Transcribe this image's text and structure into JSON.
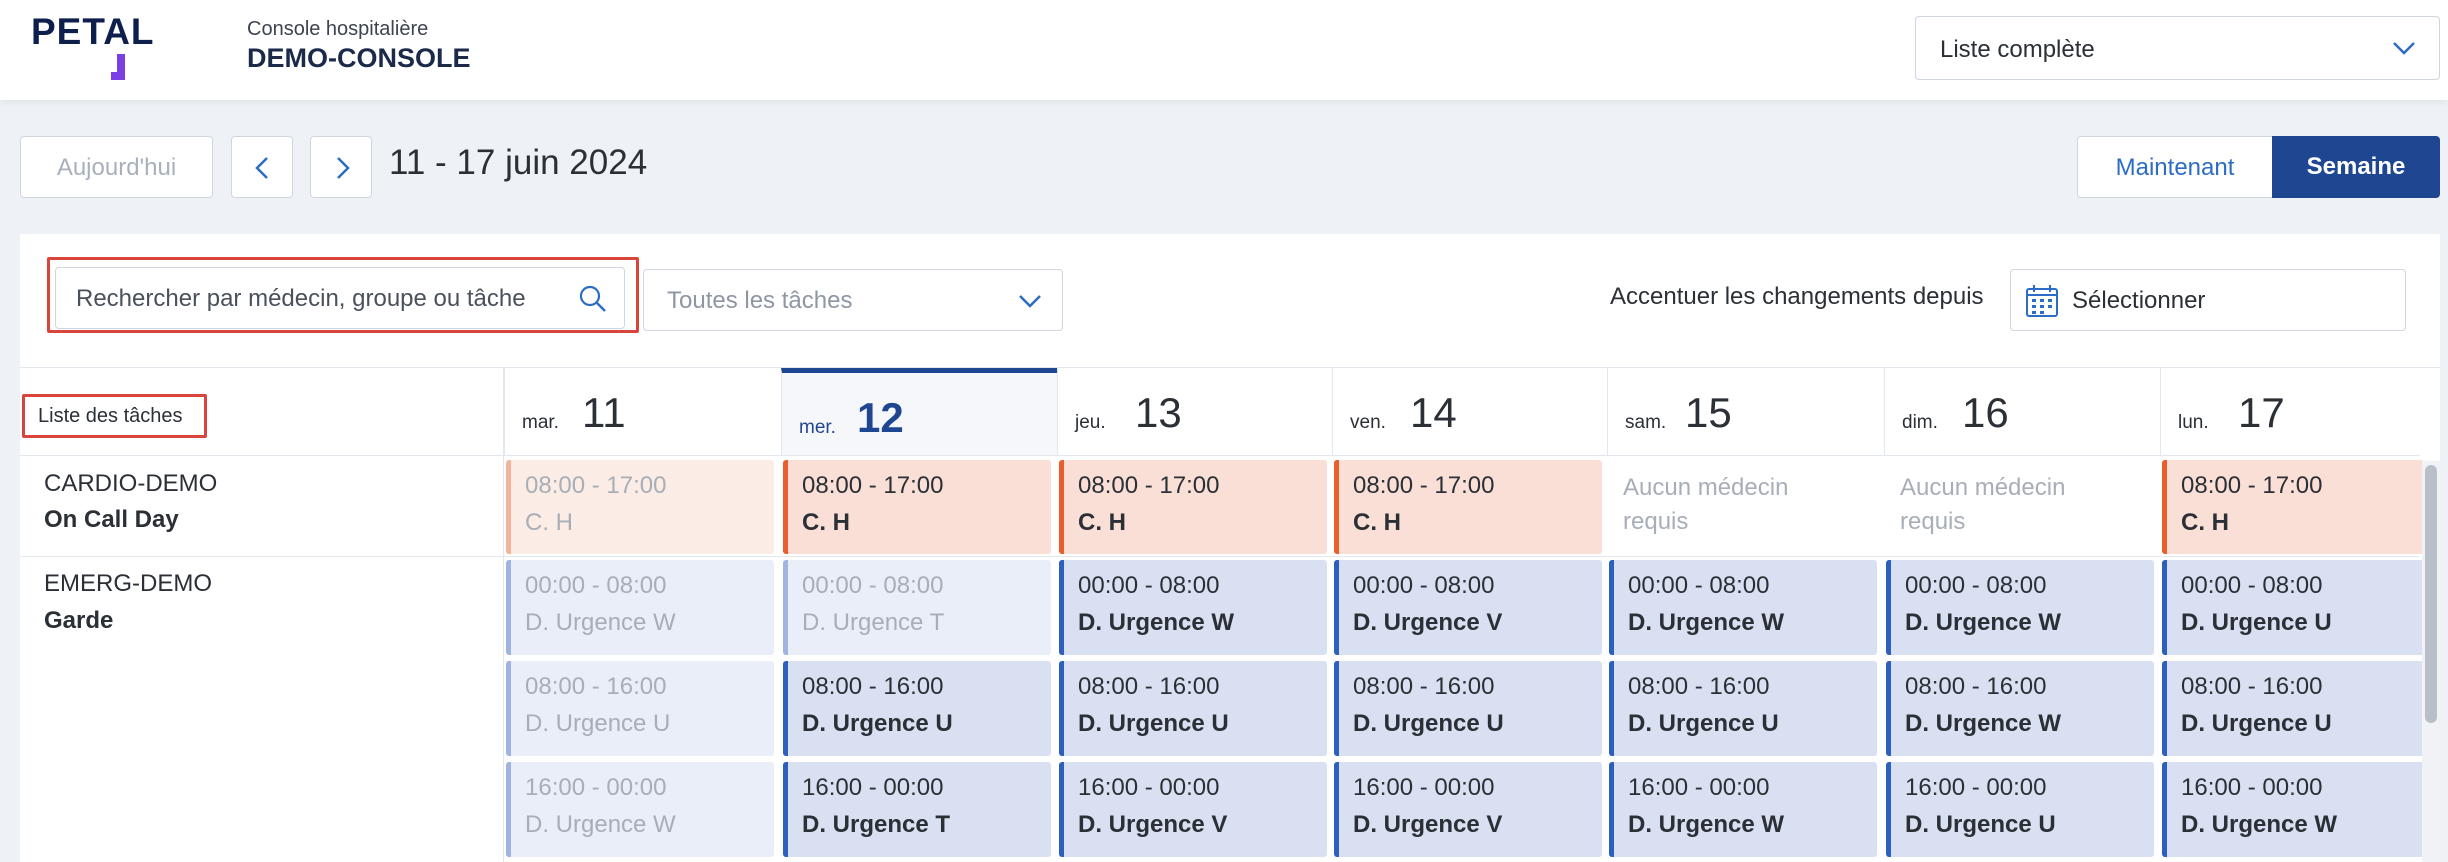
{
  "header": {
    "logo": "PETAL",
    "console_subtitle": "Console hospitalière",
    "console_title": "DEMO-CONSOLE",
    "list_select": "Liste complète"
  },
  "nav": {
    "today_label": "Aujourd'hui",
    "date_range": "11 - 17 juin 2024",
    "now_label": "Maintenant",
    "week_label": "Semaine"
  },
  "filters": {
    "search_placeholder": "Rechercher par médecin, groupe ou tâche",
    "tasks_placeholder": "Toutes les tâches",
    "accent_label": "Accentuer les changements depuis",
    "select_label": "Sélectionner"
  },
  "grid": {
    "task_list_label": "Liste des tâches",
    "days": [
      {
        "name": "mar.",
        "num": "11"
      },
      {
        "name": "mer.",
        "num": "12"
      },
      {
        "name": "jeu.",
        "num": "13"
      },
      {
        "name": "ven.",
        "num": "14"
      },
      {
        "name": "sam.",
        "num": "15"
      },
      {
        "name": "dim.",
        "num": "16"
      },
      {
        "name": "lun.",
        "num": "17"
      }
    ],
    "tasks": [
      {
        "group": "CARDIO-DEMO",
        "name": "On Call Day",
        "rows": [
          [
            {
              "time": "08:00 - 17:00",
              "who": "C. H"
            },
            {
              "time": "08:00 - 17:00",
              "who": "C. H"
            },
            {
              "time": "08:00 - 17:00",
              "who": "C. H"
            },
            {
              "time": "08:00 - 17:00",
              "who": "C. H"
            },
            {
              "time": "Aucun médecin",
              "who": "requis"
            },
            {
              "time": "Aucun médecin",
              "who": "requis"
            },
            {
              "time": "08:00 - 17:00",
              "who": "C. H"
            }
          ]
        ]
      },
      {
        "group": "EMERG-DEMO",
        "name": "Garde",
        "rows": [
          [
            {
              "time": "00:00 - 08:00",
              "who": "D. Urgence W"
            },
            {
              "time": "00:00 - 08:00",
              "who": "D. Urgence T"
            },
            {
              "time": "00:00 - 08:00",
              "who": "D. Urgence W"
            },
            {
              "time": "00:00 - 08:00",
              "who": "D. Urgence V"
            },
            {
              "time": "00:00 - 08:00",
              "who": "D. Urgence W"
            },
            {
              "time": "00:00 - 08:00",
              "who": "D. Urgence W"
            },
            {
              "time": "00:00 - 08:00",
              "who": "D. Urgence U"
            }
          ],
          [
            {
              "time": "08:00 - 16:00",
              "who": "D. Urgence U"
            },
            {
              "time": "08:00 - 16:00",
              "who": "D. Urgence U"
            },
            {
              "time": "08:00 - 16:00",
              "who": "D. Urgence U"
            },
            {
              "time": "08:00 - 16:00",
              "who": "D. Urgence U"
            },
            {
              "time": "08:00 - 16:00",
              "who": "D. Urgence U"
            },
            {
              "time": "08:00 - 16:00",
              "who": "D. Urgence W"
            },
            {
              "time": "08:00 - 16:00",
              "who": "D. Urgence U"
            }
          ],
          [
            {
              "time": "16:00 - 00:00",
              "who": "D. Urgence W"
            },
            {
              "time": "16:00 - 00:00",
              "who": "D. Urgence T"
            },
            {
              "time": "16:00 - 00:00",
              "who": "D. Urgence V"
            },
            {
              "time": "16:00 - 00:00",
              "who": "D. Urgence V"
            },
            {
              "time": "16:00 - 00:00",
              "who": "D. Urgence W"
            },
            {
              "time": "16:00 - 00:00",
              "who": "D. Urgence U"
            },
            {
              "time": "16:00 - 00:00",
              "who": "D. Urgence W"
            }
          ]
        ]
      }
    ]
  },
  "colors": {
    "brand": "#1f4791",
    "accent_purple": "#7b3fe4",
    "shift_orange": "#e85f2b",
    "shift_blue": "#2d5fbf",
    "highlight_red": "#d9453b"
  }
}
